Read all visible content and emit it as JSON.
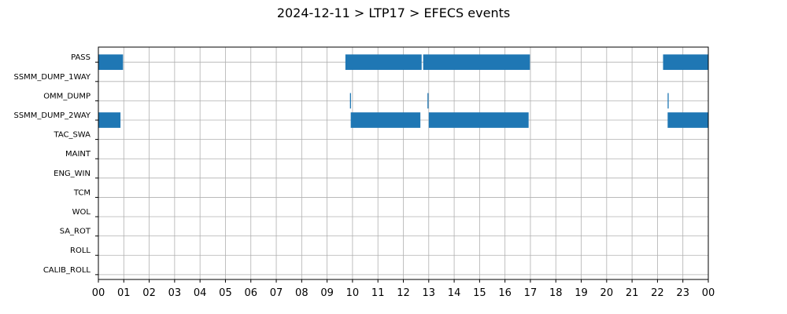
{
  "chart_data": {
    "type": "bar",
    "orientation": "horizontal-timeline",
    "title": "2024-12-11 > LTP17 > EFECS events",
    "xlabel": "",
    "ylabel": "",
    "xlim": [
      0,
      24
    ],
    "grid": true,
    "bar_color": "#1f77b4",
    "categories": [
      "PASS",
      "SSMM_DUMP_1WAY",
      "OMM_DUMP",
      "SSMM_DUMP_2WAY",
      "TAC_SWA",
      "MAINT",
      "ENG_WIN",
      "TCM",
      "WOL",
      "SA_ROT",
      "ROLL",
      "CALIB_ROLL"
    ],
    "x_tick_labels": [
      "00",
      "01",
      "02",
      "03",
      "04",
      "05",
      "06",
      "07",
      "08",
      "09",
      "10",
      "11",
      "12",
      "13",
      "14",
      "15",
      "16",
      "17",
      "18",
      "19",
      "20",
      "21",
      "22",
      "23",
      "00"
    ],
    "series": [
      {
        "category": "PASS",
        "intervals": [
          [
            0.0,
            0.97
          ],
          [
            9.72,
            12.72
          ],
          [
            12.78,
            16.98
          ],
          [
            22.22,
            24.0
          ]
        ]
      },
      {
        "category": "SSMM_DUMP_1WAY",
        "intervals": []
      },
      {
        "category": "OMM_DUMP",
        "intervals": [
          [
            9.9,
            9.94
          ],
          [
            12.95,
            12.99
          ],
          [
            22.4,
            22.44
          ]
        ]
      },
      {
        "category": "SSMM_DUMP_2WAY",
        "intervals": [
          [
            0.0,
            0.87
          ],
          [
            9.93,
            12.67
          ],
          [
            13.0,
            16.93
          ],
          [
            22.4,
            24.0
          ]
        ]
      },
      {
        "category": "TAC_SWA",
        "intervals": []
      },
      {
        "category": "MAINT",
        "intervals": []
      },
      {
        "category": "ENG_WIN",
        "intervals": []
      },
      {
        "category": "TCM",
        "intervals": []
      },
      {
        "category": "WOL",
        "intervals": []
      },
      {
        "category": "SA_ROT",
        "intervals": []
      },
      {
        "category": "ROLL",
        "intervals": []
      },
      {
        "category": "CALIB_ROLL",
        "intervals": []
      }
    ]
  }
}
